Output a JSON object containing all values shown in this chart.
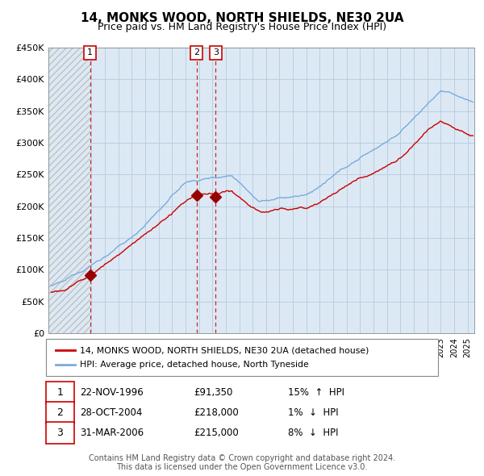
{
  "title": "14, MONKS WOOD, NORTH SHIELDS, NE30 2UA",
  "subtitle": "Price paid vs. HM Land Registry's House Price Index (HPI)",
  "title_fontsize": 11,
  "subtitle_fontsize": 9,
  "ylim": [
    0,
    450000
  ],
  "yticks": [
    0,
    50000,
    100000,
    150000,
    200000,
    250000,
    300000,
    350000,
    400000,
    450000
  ],
  "ytick_labels": [
    "£0",
    "£50K",
    "£100K",
    "£150K",
    "£200K",
    "£250K",
    "£300K",
    "£350K",
    "£400K",
    "£450K"
  ],
  "xlim_start": 1993.8,
  "xlim_end": 2025.5,
  "sales": [
    {
      "num": 1,
      "year": 1996.9,
      "price": 91350,
      "date": "22-NOV-1996",
      "hpi_pct": "15%",
      "hpi_dir": "↑"
    },
    {
      "num": 2,
      "year": 2004.83,
      "price": 218000,
      "date": "28-OCT-2004",
      "hpi_pct": "1%",
      "hpi_dir": "↓"
    },
    {
      "num": 3,
      "year": 2006.25,
      "price": 215000,
      "date": "31-MAR-2006",
      "hpi_pct": "8%",
      "hpi_dir": "↓"
    }
  ],
  "legend_label_red": "14, MONKS WOOD, NORTH SHIELDS, NE30 2UA (detached house)",
  "legend_label_blue": "HPI: Average price, detached house, North Tyneside",
  "footer1": "Contains HM Land Registry data © Crown copyright and database right 2024.",
  "footer2": "This data is licensed under the Open Government Licence v3.0.",
  "background_color": "#ffffff",
  "plot_bg_color": "#dce9f5",
  "hatch_color": "#c0c0c0",
  "red_line_color": "#cc0000",
  "blue_line_color": "#7aabdb",
  "vline_color": "#cc0000",
  "marker_color": "#990000",
  "grid_color": "#b8cfe0"
}
